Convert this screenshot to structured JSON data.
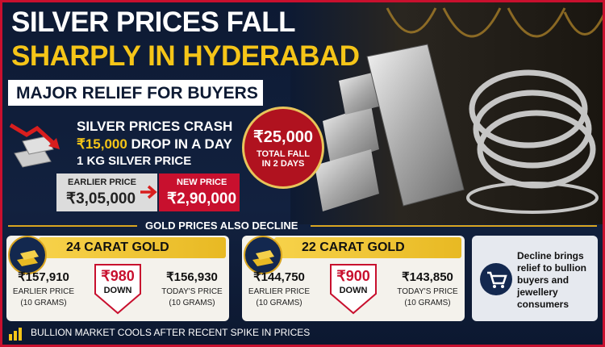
{
  "header": {
    "title_line1": "SILVER PRICES FALL",
    "title_line2": "SHARPLY IN HYDERABAD",
    "subtitle": "MAJOR RELIEF FOR BUYERS"
  },
  "silver": {
    "headline": "SILVER PRICES CRASH",
    "drop_amount": "₹15,000",
    "drop_label": "DROP IN A DAY",
    "unit": "1 KG SILVER PRICE",
    "earlier_label": "EARLIER PRICE",
    "earlier_price": "₹3,05,000",
    "new_label": "NEW PRICE",
    "new_price": "₹2,90,000"
  },
  "badge": {
    "amount": "₹25,000",
    "line1": "TOTAL FALL",
    "line2": "IN 2 DAYS"
  },
  "gold": {
    "section_title": "GOLD PRICES ALSO DECLINE",
    "cards": [
      {
        "title": "24 CARAT GOLD",
        "earlier_price": "₹157,910",
        "earlier_label": "EARLIER PRICE",
        "earlier_unit": "(10 GRAMS)",
        "change": "₹980",
        "change_label": "DOWN",
        "today_price": "₹156,930",
        "today_label": "TODAY'S PRICE",
        "today_unit": "(10 GRAMS)"
      },
      {
        "title": "22 CARAT GOLD",
        "earlier_price": "₹144,750",
        "earlier_label": "EARLIER PRICE",
        "earlier_unit": "(10 GRAMS)",
        "change": "₹900",
        "change_label": "DOWN",
        "today_price": "₹143,850",
        "today_label": "TODAY'S PRICE",
        "today_unit": "(10 GRAMS)"
      }
    ]
  },
  "note": "Decline brings relief to bullion buyers and jewellery consumers",
  "footer": "BULLION MARKET COOLS AFTER RECENT SPIKE IN PRICES"
}
